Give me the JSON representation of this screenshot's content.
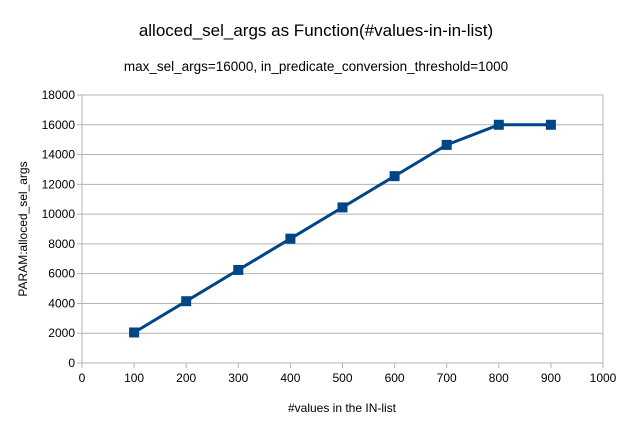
{
  "chart_data": {
    "type": "line",
    "title": "alloced_sel_args as Function(#values-in-in-list)",
    "subtitle": "max_sel_args=16000, in_predicate_conversion_threshold=1000",
    "xlabel": "#values in the IN-list",
    "ylabel": "PARAM:alloced_sel_args",
    "xlim": [
      0,
      1000
    ],
    "ylim": [
      0,
      18000
    ],
    "xticks": [
      0,
      100,
      200,
      300,
      400,
      500,
      600,
      700,
      800,
      900,
      1000
    ],
    "yticks": [
      0,
      2000,
      4000,
      6000,
      8000,
      10000,
      12000,
      14000,
      16000,
      18000
    ],
    "grid": true,
    "legend": "none",
    "series": [
      {
        "color": "#004586",
        "marker": "square",
        "x": [
          100,
          200,
          300,
          400,
          500,
          600,
          700,
          800,
          900
        ],
        "y": [
          2050,
          4150,
          6250,
          8350,
          10450,
          12550,
          14650,
          16000,
          16000
        ]
      }
    ]
  }
}
